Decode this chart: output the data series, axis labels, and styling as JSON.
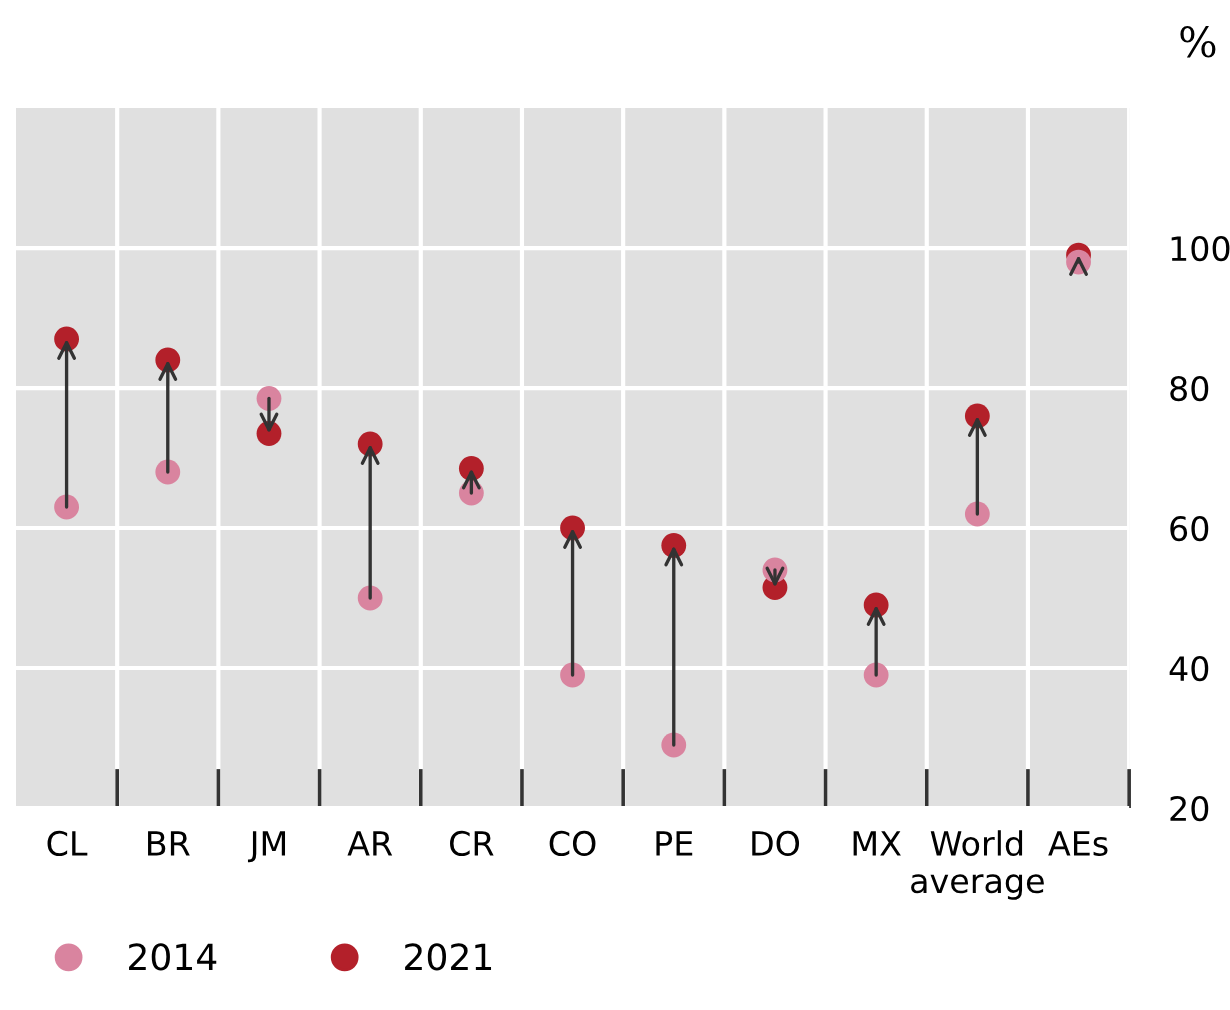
{
  "chart_data": {
    "type": "scatter",
    "ylabel": "%",
    "categories": [
      "CL",
      "BR",
      "JM",
      "AR",
      "CR",
      "CO",
      "PE",
      "DO",
      "MX",
      "World\naverage",
      "AEs"
    ],
    "series": [
      {
        "name": "2014",
        "color": "#d9849f",
        "values": [
          63,
          68,
          78.5,
          50,
          65,
          39,
          29,
          54,
          39,
          62,
          98
        ]
      },
      {
        "name": "2021",
        "color": "#b3202a",
        "values": [
          87,
          84,
          73.5,
          72,
          68.5,
          60,
          57.5,
          51.5,
          49,
          76,
          99
        ]
      }
    ],
    "ylim": [
      20,
      120
    ],
    "yticks": [
      20,
      40,
      60,
      80,
      100
    ],
    "grid": true,
    "legend": "bottom left",
    "marker": "circle"
  }
}
